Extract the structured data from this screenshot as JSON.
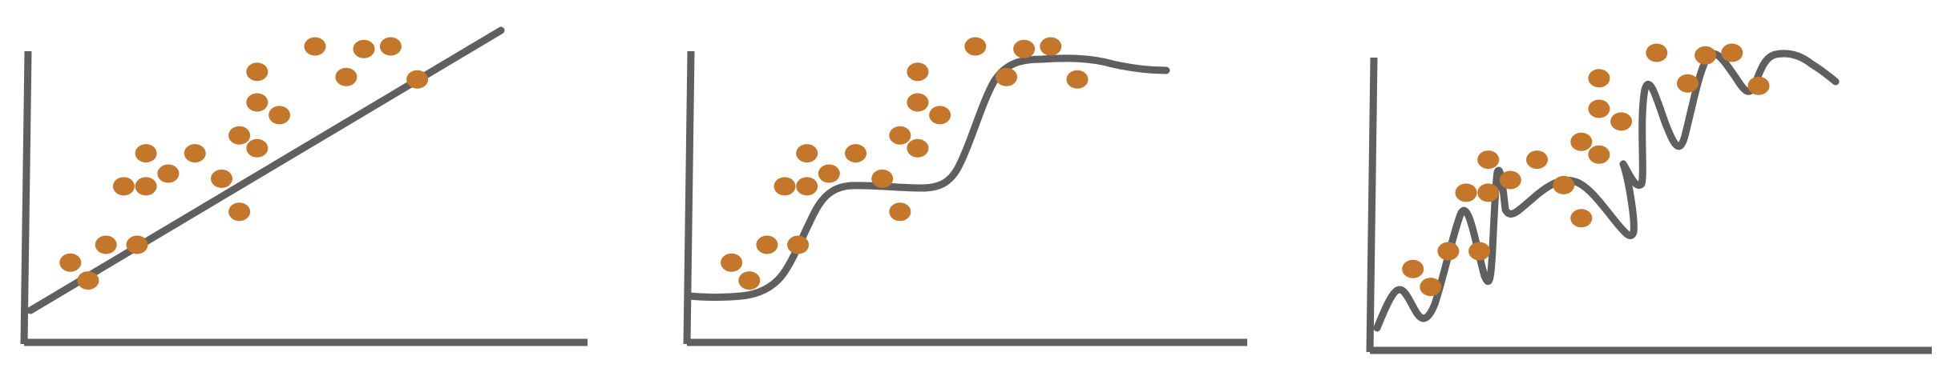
{
  "colors": {
    "axis": "#5f5f5f",
    "fit": "#5f5f5f",
    "point": "#c4772b",
    "background": "#ffffff"
  },
  "panels": [
    {
      "id": "linear-fit",
      "fit_type": "linear",
      "points": [
        [
          0.05,
          0.15
        ],
        [
          0.09,
          0.08
        ],
        [
          0.13,
          0.22
        ],
        [
          0.17,
          0.45
        ],
        [
          0.2,
          0.22
        ],
        [
          0.22,
          0.45
        ],
        [
          0.22,
          0.58
        ],
        [
          0.27,
          0.5
        ],
        [
          0.33,
          0.58
        ],
        [
          0.39,
          0.48
        ],
        [
          0.43,
          0.35
        ],
        [
          0.43,
          0.65
        ],
        [
          0.47,
          0.6
        ],
        [
          0.47,
          0.78
        ],
        [
          0.47,
          0.9
        ],
        [
          0.52,
          0.73
        ],
        [
          0.6,
          1.0
        ],
        [
          0.67,
          0.88
        ],
        [
          0.71,
          0.99
        ],
        [
          0.77,
          1.0
        ],
        [
          0.83,
          0.87
        ]
      ]
    },
    {
      "id": "smooth-fit",
      "fit_type": "smooth",
      "points": [
        [
          0.05,
          0.15
        ],
        [
          0.09,
          0.08
        ],
        [
          0.13,
          0.22
        ],
        [
          0.17,
          0.45
        ],
        [
          0.2,
          0.22
        ],
        [
          0.22,
          0.45
        ],
        [
          0.22,
          0.58
        ],
        [
          0.27,
          0.5
        ],
        [
          0.33,
          0.58
        ],
        [
          0.39,
          0.48
        ],
        [
          0.43,
          0.35
        ],
        [
          0.43,
          0.65
        ],
        [
          0.47,
          0.6
        ],
        [
          0.47,
          0.78
        ],
        [
          0.47,
          0.9
        ],
        [
          0.52,
          0.73
        ],
        [
          0.6,
          1.0
        ],
        [
          0.67,
          0.88
        ],
        [
          0.71,
          0.99
        ],
        [
          0.77,
          1.0
        ],
        [
          0.83,
          0.87
        ]
      ]
    },
    {
      "id": "overfit",
      "fit_type": "overfit",
      "points": [
        [
          0.05,
          0.15
        ],
        [
          0.09,
          0.08
        ],
        [
          0.13,
          0.22
        ],
        [
          0.17,
          0.45
        ],
        [
          0.2,
          0.22
        ],
        [
          0.22,
          0.45
        ],
        [
          0.22,
          0.58
        ],
        [
          0.27,
          0.5
        ],
        [
          0.33,
          0.58
        ],
        [
          0.39,
          0.48
        ],
        [
          0.43,
          0.35
        ],
        [
          0.43,
          0.65
        ],
        [
          0.47,
          0.6
        ],
        [
          0.47,
          0.78
        ],
        [
          0.47,
          0.9
        ],
        [
          0.52,
          0.73
        ],
        [
          0.6,
          1.0
        ],
        [
          0.67,
          0.88
        ],
        [
          0.71,
          0.99
        ],
        [
          0.77,
          1.0
        ],
        [
          0.83,
          0.87
        ]
      ]
    }
  ]
}
